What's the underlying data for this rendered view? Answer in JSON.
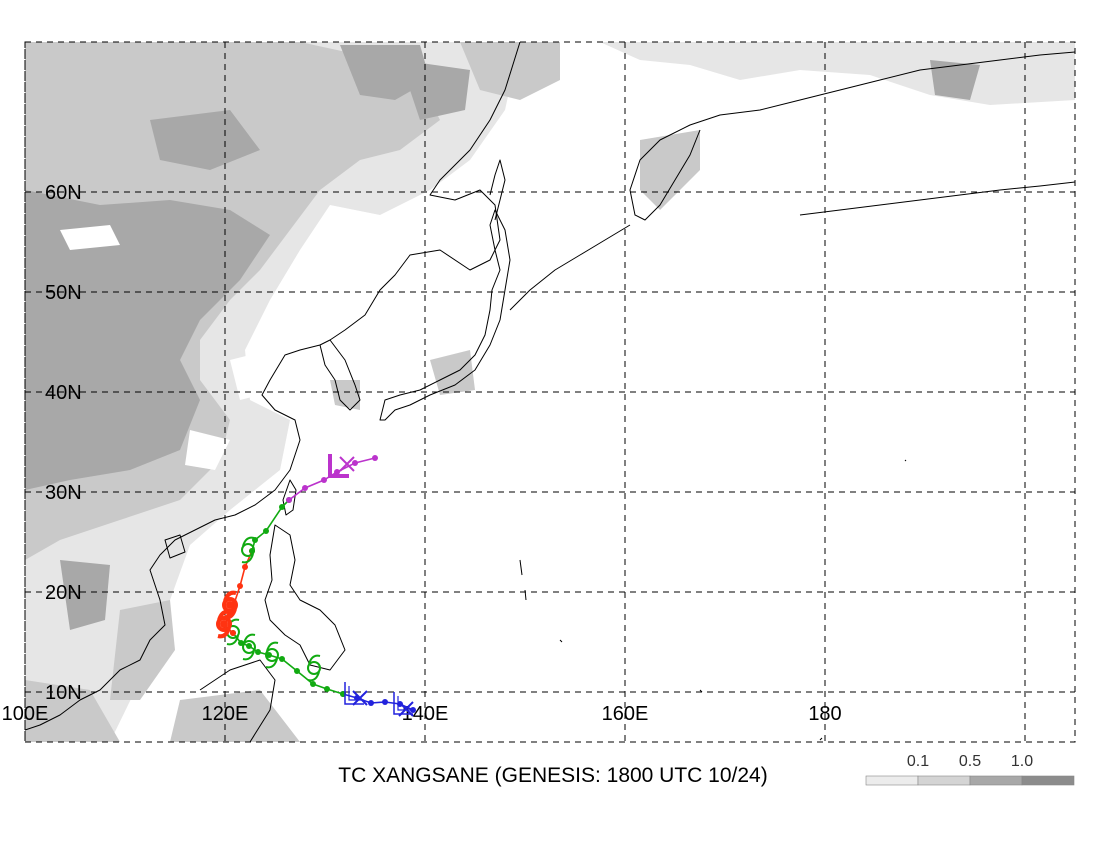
{
  "title": "TC XANGSANE (GENESIS: 1800 UTC 10/24)",
  "map": {
    "lon_range": [
      100,
      205
    ],
    "lat_range": [
      5,
      75
    ],
    "lat_ticks": [
      {
        "value": 60,
        "label": "60N"
      },
      {
        "value": 50,
        "label": "50N"
      },
      {
        "value": 40,
        "label": "40N"
      },
      {
        "value": 30,
        "label": "30N"
      },
      {
        "value": 20,
        "label": "20N"
      },
      {
        "value": 10,
        "label": "10N"
      }
    ],
    "lon_ticks": [
      {
        "value": 100,
        "label": "100E"
      },
      {
        "value": 120,
        "label": "120E"
      },
      {
        "value": 140,
        "label": "140E"
      },
      {
        "value": 160,
        "label": "160E"
      },
      {
        "value": 180,
        "label": "180"
      }
    ],
    "grid": true,
    "grid_style": "dashed",
    "terrain_shading": "gray"
  },
  "legend": {
    "items": [
      {
        "label": "0.1",
        "color": "#ececec"
      },
      {
        "label": "0.5",
        "color": "#d4d4d4"
      },
      {
        "label": "1.0",
        "color": "#a8a8a8"
      }
    ]
  },
  "track": {
    "colors": {
      "depression": "#2222dd",
      "storm": "#11aa11",
      "typhoon": "#ff3311",
      "extratropical": "#bb33cc"
    },
    "depression": [
      [
        138.8,
        8.2
      ],
      [
        137.5,
        8.8
      ],
      [
        136.0,
        9.0
      ],
      [
        134.6,
        8.9
      ],
      [
        133.2,
        9.4
      ],
      [
        131.8,
        9.8
      ]
    ],
    "storm_1": [
      [
        131.8,
        9.8
      ],
      [
        130.2,
        10.3
      ],
      [
        128.8,
        10.8
      ],
      [
        127.2,
        12.1
      ],
      [
        125.7,
        13.3
      ],
      [
        124.4,
        13.7
      ],
      [
        123.3,
        14.0
      ],
      [
        122.4,
        14.6
      ],
      [
        121.6,
        14.9
      ],
      [
        120.8,
        15.9
      ]
    ],
    "typhoon": [
      [
        120.8,
        15.9
      ],
      [
        119.9,
        16.7
      ],
      [
        120.4,
        17.6
      ],
      [
        120.9,
        18.8
      ],
      [
        121.5,
        20.6
      ],
      [
        122.0,
        22.5
      ],
      [
        122.7,
        24.1
      ]
    ],
    "storm_2": [
      [
        122.7,
        24.1
      ],
      [
        123.0,
        25.2
      ],
      [
        124.1,
        26.1
      ],
      [
        125.7,
        28.5
      ],
      [
        126.4,
        29.2
      ]
    ],
    "extratropical": [
      [
        126.4,
        29.2
      ],
      [
        128.0,
        30.4
      ],
      [
        129.9,
        31.2
      ],
      [
        131.2,
        32.0
      ],
      [
        133.0,
        32.9
      ],
      [
        135.0,
        33.4
      ]
    ],
    "symbols": [
      {
        "type": "x",
        "lon": 138.1,
        "lat": 8.3,
        "color": "depression"
      },
      {
        "type": "L",
        "lon": 137.6,
        "lat": 8.6,
        "color": "depression"
      },
      {
        "type": "x",
        "lon": 133.5,
        "lat": 9.4,
        "color": "depression"
      },
      {
        "type": "L",
        "lon": 132.7,
        "lat": 9.6,
        "color": "depression"
      },
      {
        "type": "storm",
        "lon": 128.9,
        "lat": 12.4,
        "color": "storm"
      },
      {
        "type": "storm",
        "lon": 124.7,
        "lat": 13.7,
        "color": "storm"
      },
      {
        "type": "storm",
        "lon": 122.4,
        "lat": 14.5,
        "color": "storm"
      },
      {
        "type": "storm",
        "lon": 120.8,
        "lat": 16.0,
        "color": "storm"
      },
      {
        "type": "typhoon",
        "lon": 119.9,
        "lat": 16.8,
        "color": "typhoon"
      },
      {
        "type": "typhoon",
        "lon": 120.5,
        "lat": 18.7,
        "color": "typhoon"
      },
      {
        "type": "storm",
        "lon": 122.3,
        "lat": 24.2,
        "color": "storm"
      },
      {
        "type": "L",
        "lon": 131.2,
        "lat": 32.4,
        "color": "extratropical"
      },
      {
        "type": "x",
        "lon": 132.2,
        "lat": 32.8,
        "color": "extratropical"
      }
    ]
  }
}
